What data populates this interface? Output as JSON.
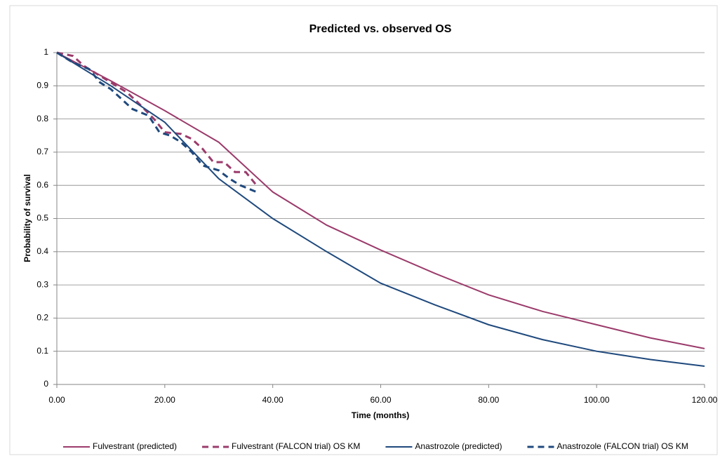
{
  "chart_data": {
    "type": "line",
    "title": "Predicted vs. observed OS",
    "x_label": "Time (months)",
    "y_label": "Probability of survival",
    "xlim": [
      0,
      120
    ],
    "ylim": [
      0,
      1
    ],
    "xticks": [
      {
        "value": 0,
        "label": "0.00"
      },
      {
        "value": 20,
        "label": "20.00"
      },
      {
        "value": 40,
        "label": "40.00"
      },
      {
        "value": 60,
        "label": "60.00"
      },
      {
        "value": 80,
        "label": "80.00"
      },
      {
        "value": 100,
        "label": "100.00"
      },
      {
        "value": 120,
        "label": "120.00"
      }
    ],
    "yticks": [
      0,
      0.1,
      0.2,
      0.3,
      0.4,
      0.5,
      0.6,
      0.7,
      0.8,
      0.9,
      1
    ],
    "grid": true,
    "legend": "bottom",
    "series": [
      {
        "name": "Fulvestrant (predicted)",
        "color": "#9b3b6b",
        "dashed": false,
        "x": [
          0,
          10,
          20,
          30,
          40,
          50,
          60,
          70,
          80,
          90,
          100,
          110,
          120
        ],
        "values": [
          1,
          0.915,
          0.825,
          0.73,
          0.58,
          0.48,
          0.405,
          0.335,
          0.27,
          0.22,
          0.18,
          0.14,
          0.108
        ]
      },
      {
        "name": "Fulvestrant (FALCON trial) OS KM",
        "color": "#9b3b6b",
        "dashed": true,
        "x": [
          0,
          3,
          5,
          8,
          11,
          13,
          15,
          18,
          20,
          23,
          25,
          27,
          29,
          31,
          33,
          35,
          37
        ],
        "values": [
          1,
          0.99,
          0.96,
          0.93,
          0.9,
          0.88,
          0.85,
          0.8,
          0.76,
          0.755,
          0.74,
          0.71,
          0.67,
          0.67,
          0.64,
          0.64,
          0.6
        ]
      },
      {
        "name": "Anastrozole (predicted)",
        "color": "#1f497d",
        "dashed": false,
        "x": [
          0,
          10,
          20,
          30,
          40,
          50,
          60,
          70,
          80,
          90,
          100,
          110,
          120
        ],
        "values": [
          1,
          0.9,
          0.79,
          0.62,
          0.5,
          0.4,
          0.305,
          0.24,
          0.18,
          0.135,
          0.1,
          0.075,
          0.055
        ]
      },
      {
        "name": "Anastrozole (FALCON trial) OS KM",
        "color": "#1f497d",
        "dashed": true,
        "x": [
          0,
          3,
          6,
          8,
          10,
          12,
          14,
          17,
          19,
          21,
          23,
          25,
          27,
          30,
          32,
          34,
          37
        ],
        "values": [
          1,
          0.97,
          0.95,
          0.91,
          0.89,
          0.86,
          0.83,
          0.81,
          0.76,
          0.75,
          0.73,
          0.7,
          0.66,
          0.645,
          0.62,
          0.6,
          0.58
        ]
      }
    ]
  }
}
